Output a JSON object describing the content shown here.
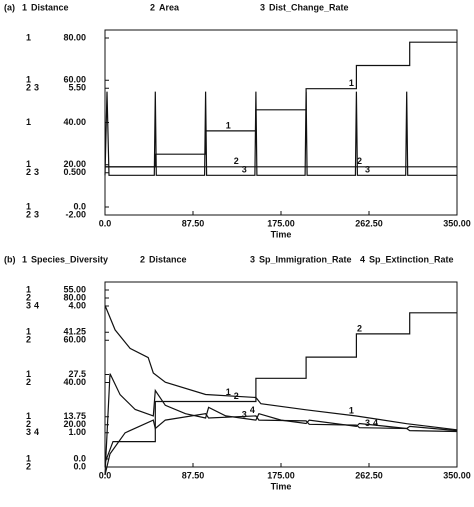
{
  "chart_data": [
    {
      "type": "line",
      "panel": "(a)",
      "x_label": "Time",
      "xlim": [
        0,
        350
      ],
      "xticks": [
        {
          "value": 0,
          "label": "0.0"
        },
        {
          "value": 87.5,
          "label": "87.50"
        },
        {
          "value": 175,
          "label": "175.00"
        },
        {
          "value": 262.5,
          "label": "262.50"
        },
        {
          "value": 350,
          "label": "350.00"
        }
      ],
      "scales": [
        {
          "ylim": [
            0,
            80
          ],
          "yticks": [
            {
              "value": 0,
              "label": "0.0"
            },
            {
              "value": 20,
              "label": "20.00"
            },
            {
              "value": 40,
              "label": "40.00"
            },
            {
              "value": 60,
              "label": "60.00"
            },
            {
              "value": 80,
              "label": "80.00"
            }
          ]
        },
        {
          "ylim": [
            -2,
            8
          ],
          "yticks": [
            {
              "value": -2,
              "label": "-2.00"
            },
            {
              "value": 0.5,
              "label": "0.500"
            },
            {
              "value": 5.5,
              "label": "5.50"
            }
          ]
        }
      ],
      "series": [
        {
          "key": "1",
          "name": "Distance",
          "scale": 0,
          "color": "#111111",
          "x": [
            0,
            50,
            50,
            100,
            100,
            150,
            150,
            200,
            200,
            250,
            250,
            303,
            303,
            350
          ],
          "values": [
            19,
            19,
            25,
            25,
            36,
            36,
            46,
            46,
            56,
            56,
            67,
            67,
            78,
            78
          ]
        },
        {
          "key": "2",
          "name": "Area",
          "scale": 1,
          "color": "#111111",
          "x": [
            0,
            350
          ],
          "values": [
            0.85,
            0.85
          ]
        },
        {
          "key": "3",
          "name": "Dist_Change_Rate",
          "scale": 1,
          "color": "#111111",
          "x": [
            0,
            2,
            4,
            49,
            50,
            51,
            99,
            100,
            101,
            149,
            150,
            151,
            199,
            200,
            201,
            249,
            250,
            251,
            299,
            300,
            301,
            350
          ],
          "values": [
            0.35,
            5.3,
            0.35,
            0.35,
            5.3,
            0.35,
            0.35,
            5.3,
            0.35,
            0.35,
            5.3,
            0.35,
            0.35,
            5.3,
            0.35,
            0.35,
            5.3,
            0.35,
            0.35,
            5.3,
            0.35,
            0.35
          ]
        }
      ]
    },
    {
      "type": "line",
      "panel": "(b)",
      "x_label": "Time",
      "xlim": [
        0,
        350
      ],
      "xticks": [
        {
          "value": 0,
          "label": "0.0"
        },
        {
          "value": 87.5,
          "label": "87.50"
        },
        {
          "value": 175,
          "label": "175.00"
        },
        {
          "value": 262.5,
          "label": "262.50"
        },
        {
          "value": 350,
          "label": "350.00"
        }
      ],
      "scales": [
        {
          "ylim": [
            0,
            55
          ],
          "yticks": [
            {
              "value": 0,
              "label": "0.0"
            },
            13.75,
            27.5,
            41.25,
            {
              "value": 55,
              "label": "55.00"
            }
          ]
        },
        {
          "ylim": [
            0,
            80
          ],
          "yticks": [
            {
              "value": 0,
              "label": "0.0"
            },
            {
              "value": 20,
              "label": "20.00"
            },
            {
              "value": 40,
              "label": "40.00"
            },
            {
              "value": 60,
              "label": "60.00"
            },
            {
              "value": 80,
              "label": "80.00"
            }
          ]
        },
        {
          "ylim": [
            0,
            4
          ],
          "yticks": [
            {
              "value": 1,
              "label": "1.00"
            },
            {
              "value": 4,
              "label": "4.00"
            }
          ]
        }
      ],
      "series": [
        {
          "key": "1",
          "name": "Species_Diversity",
          "scale": 0,
          "color": "#111111",
          "x": [
            0,
            10,
            25,
            43,
            48,
            60,
            100,
            150,
            155,
            200,
            250,
            300,
            350
          ],
          "values": [
            50,
            42,
            36,
            33,
            28,
            25,
            21,
            20,
            18,
            16,
            14,
            11.5,
            9.5
          ]
        },
        {
          "key": "2",
          "name": "Distance",
          "scale": 1,
          "color": "#111111",
          "x": [
            0,
            8,
            50,
            50,
            150,
            150,
            200,
            200,
            250,
            250,
            303,
            303,
            350
          ],
          "values": [
            2,
            12,
            12,
            31,
            31,
            42,
            42,
            52,
            52,
            63,
            63,
            73,
            73
          ]
        },
        {
          "key": "3",
          "name": "Sp_Immigration_Rate",
          "scale": 2,
          "color": "#111111",
          "x": [
            0,
            5,
            15,
            30,
            48,
            50,
            60,
            80,
            100,
            103,
            120,
            150,
            153,
            175,
            200,
            203,
            250,
            253,
            300,
            303,
            350
          ],
          "values": [
            0,
            2.4,
            1.9,
            1.55,
            1.4,
            2.0,
            1.65,
            1.45,
            1.35,
            1.6,
            1.4,
            1.3,
            1.45,
            1.3,
            1.22,
            1.3,
            1.15,
            1.22,
            1.1,
            1.15,
            1.05
          ]
        },
        {
          "key": "4",
          "name": "Sp_Extinction_Rate",
          "scale": 2,
          "color": "#111111",
          "x": [
            0,
            5,
            20,
            48,
            50,
            60,
            100,
            103,
            150,
            153,
            200,
            203,
            250,
            253,
            300,
            303,
            350
          ],
          "values": [
            0,
            0.5,
            1.0,
            1.3,
            1.1,
            1.3,
            1.45,
            1.35,
            1.4,
            1.3,
            1.28,
            1.2,
            1.18,
            1.12,
            1.1,
            1.05,
            1.03
          ]
        }
      ]
    }
  ]
}
